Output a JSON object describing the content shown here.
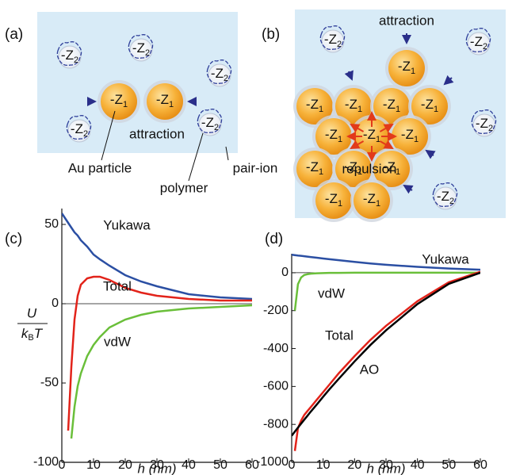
{
  "panels": [
    {
      "label": "(a)",
      "particle": {
        "base": "-Z",
        "sub": "1"
      },
      "ion": {
        "base": "-Z",
        "sub": "2"
      },
      "annotations": [
        "attraction",
        "Au particle",
        "polymer",
        "pair-ion"
      ]
    },
    {
      "label": "(b)",
      "annotations": [
        "attraction",
        "repulsion"
      ]
    }
  ],
  "chart_data": [
    {
      "type": "line",
      "label": "(c)",
      "x_label": "h (nm)",
      "y_label": {
        "numerator": "U",
        "denominator": "k",
        "denominator_sub": "B",
        "denominator_tail": "T"
      },
      "x": [
        0,
        1,
        2,
        3,
        4,
        5,
        6,
        8,
        10,
        12,
        15,
        20,
        25,
        30,
        40,
        50,
        60
      ],
      "xlim": [
        0,
        60
      ],
      "xticks": [
        0,
        10,
        20,
        30,
        40,
        50,
        60
      ],
      "ylim": [
        -100,
        60
      ],
      "yticks": [
        -100,
        -50,
        0,
        50
      ],
      "zero_line": true,
      "series": [
        {
          "name": "Yukawa",
          "color": "#2b4fa3",
          "values": [
            57,
            54,
            51,
            48,
            45,
            43,
            40,
            36,
            31,
            28,
            24,
            18,
            14,
            11,
            6,
            4,
            3
          ]
        },
        {
          "name": "Total",
          "color": "#e2231a",
          "values": [
            null,
            null,
            -80,
            -40,
            -10,
            5,
            12,
            16,
            17,
            17,
            15,
            10,
            7,
            5,
            3,
            2,
            2
          ]
        },
        {
          "name": "vdW",
          "color": "#6abf3a",
          "values": [
            null,
            null,
            null,
            -85,
            -65,
            -52,
            -44,
            -33,
            -26,
            -21,
            -15,
            -10,
            -7,
            -5,
            -3,
            -2,
            -1
          ]
        }
      ]
    },
    {
      "type": "line",
      "label": "(d)",
      "x_label": "h (nm)",
      "x": [
        0,
        1,
        2,
        3,
        4,
        5,
        6,
        8,
        10,
        12,
        15,
        20,
        25,
        30,
        40,
        50,
        60
      ],
      "xlim": [
        0,
        60
      ],
      "xticks": [
        0,
        10,
        20,
        30,
        40,
        50,
        60
      ],
      "ylim": [
        -1000,
        100
      ],
      "yticks": [
        -1000,
        -800,
        -600,
        -400,
        -200,
        0
      ],
      "zero_line": true,
      "series": [
        {
          "name": "Yukawa",
          "color": "#2b4fa3",
          "values": [
            95,
            93,
            91,
            89,
            87,
            85,
            83,
            79,
            75,
            71,
            66,
            57,
            49,
            42,
            31,
            22,
            16
          ]
        },
        {
          "name": "vdW",
          "color": "#6abf3a",
          "values": [
            null,
            -200,
            -60,
            -25,
            -12,
            -8,
            -5,
            -3,
            -2,
            -1,
            -1,
            0,
            0,
            0,
            0,
            0,
            0
          ]
        },
        {
          "name": "Total",
          "color": "#e2231a",
          "values": [
            null,
            -940,
            -820,
            -780,
            -750,
            -730,
            -710,
            -670,
            -630,
            -590,
            -530,
            -440,
            -355,
            -280,
            -150,
            -50,
            5
          ]
        },
        {
          "name": "AO",
          "color": "#000000",
          "values": [
            -860,
            -838,
            -817,
            -796,
            -775,
            -755,
            -734,
            -695,
            -654,
            -615,
            -559,
            -468,
            -382,
            -304,
            -165,
            -59,
            0
          ]
        }
      ]
    }
  ]
}
